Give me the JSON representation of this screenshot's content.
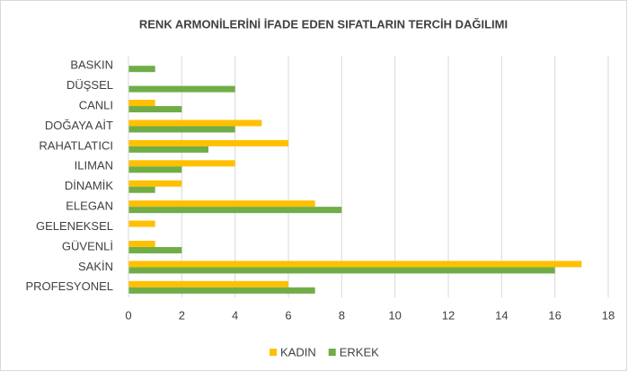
{
  "chart_data": {
    "type": "bar",
    "orientation": "horizontal",
    "title": "RENK ARMONİLERİNİ İFADE EDEN SIFATLARIN TERCİH DAĞILIMI",
    "categories": [
      "BASKIN",
      "DÜŞSEL",
      "CANLI",
      "DOĞAYA AİT",
      "RAHATLATICI",
      "ILIMAN",
      "DİNAMİK",
      "ELEGAN",
      "GELENEKSEL",
      "GÜVENLİ",
      "SAKİN",
      "PROFESYONEL"
    ],
    "series": [
      {
        "name": "KADIN",
        "color": "#FFC000",
        "values": [
          0,
          0,
          1,
          5,
          6,
          4,
          2,
          7,
          1,
          1,
          17,
          6
        ]
      },
      {
        "name": "ERKEK",
        "color": "#70AD47",
        "values": [
          1,
          4,
          2,
          4,
          3,
          2,
          1,
          8,
          0,
          2,
          16,
          7
        ]
      }
    ],
    "xlim": [
      0,
      18
    ],
    "xticks": [
      0,
      2,
      4,
      6,
      8,
      10,
      12,
      14,
      16,
      18
    ],
    "grid": true,
    "legend": "bottom"
  }
}
